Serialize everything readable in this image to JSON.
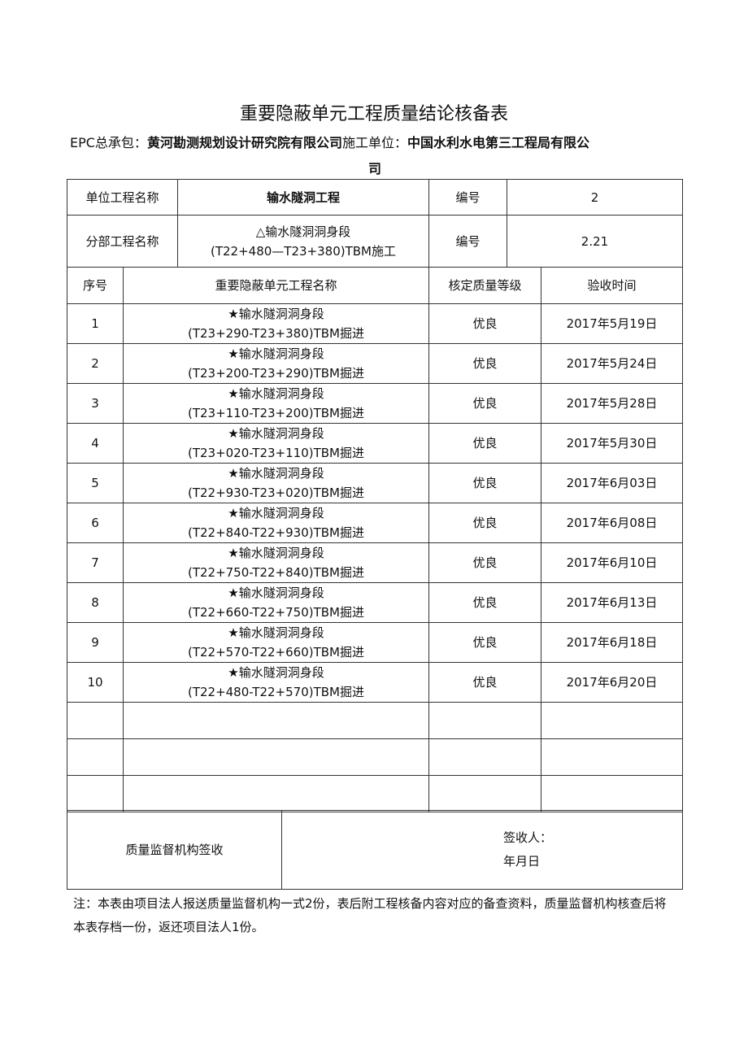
{
  "title": "重要隐蔽单元工程质量结论核备表",
  "header": {
    "epc_label": "EPC总承包：",
    "epc_value": "黄河勘测规划设计研究院有限公司",
    "contractor_label": "施工单位：",
    "contractor_value": "中国水利水电第三工程局有限公",
    "contractor_tail": "司"
  },
  "unit_project": {
    "label": "单位工程名称",
    "value": "输水隧洞工程",
    "code_label": "编号",
    "code": "2"
  },
  "sub_project": {
    "label": "分部工程名称",
    "value_line1": "△输水隧洞洞身段",
    "value_line2": "(T22+480—T23+380)TBM施工",
    "code_label": "编号",
    "code": "2.21"
  },
  "columns": [
    "序号",
    "重要隐蔽单元工程名称",
    "核定质量等级",
    "验收时间"
  ],
  "rows": [
    {
      "no": "1",
      "name1": "★输水隧洞洞身段",
      "name2": "(T23+290-T23+380)TBM掘进",
      "grade": "优良",
      "date": "2017年5月19日"
    },
    {
      "no": "2",
      "name1": "★输水隧洞洞身段",
      "name2": "(T23+200-T23+290)TBM掘进",
      "grade": "优良",
      "date": "2017年5月24日"
    },
    {
      "no": "3",
      "name1": "★输水隧洞洞身段",
      "name2": "(T23+110-T23+200)TBM掘进",
      "grade": "优良",
      "date": "2017年5月28日"
    },
    {
      "no": "4",
      "name1": "★输水隧洞洞身段",
      "name2": "(T23+020-T23+110)TBM掘进",
      "grade": "优良",
      "date": "2017年5月30日"
    },
    {
      "no": "5",
      "name1": "★输水隧洞洞身段",
      "name2": "(T22+930-T23+020)TBM掘进",
      "grade": "优良",
      "date": "2017年6月03日"
    },
    {
      "no": "6",
      "name1": "★输水隧洞洞身段",
      "name2": "(T22+840-T22+930)TBM掘进",
      "grade": "优良",
      "date": "2017年6月08日"
    },
    {
      "no": "7",
      "name1": "★输水隧洞洞身段",
      "name2": "(T22+750-T22+840)TBM掘进",
      "grade": "优良",
      "date": "2017年6月10日"
    },
    {
      "no": "8",
      "name1": "★输水隧洞洞身段",
      "name2": "(T22+660-T22+750)TBM掘进",
      "grade": "优良",
      "date": "2017年6月13日"
    },
    {
      "no": "9",
      "name1": "★输水隧洞洞身段",
      "name2": "(T22+570-T22+660)TBM掘进",
      "grade": "优良",
      "date": "2017年6月18日"
    },
    {
      "no": "10",
      "name1": "★输水隧洞洞身段",
      "name2": "(T22+480-T22+570)TBM掘进",
      "grade": "优良",
      "date": "2017年6月20日"
    }
  ],
  "signoff": {
    "label": "质量监督机构签收",
    "signer": "签收人：",
    "date": "年月日"
  },
  "note": "注：本表由项目法人报送质量监督机构一式2份，表后附工程核备内容对应的备查资料，质量监督机构核查后将本表存档一份，返还项目法人1份。"
}
